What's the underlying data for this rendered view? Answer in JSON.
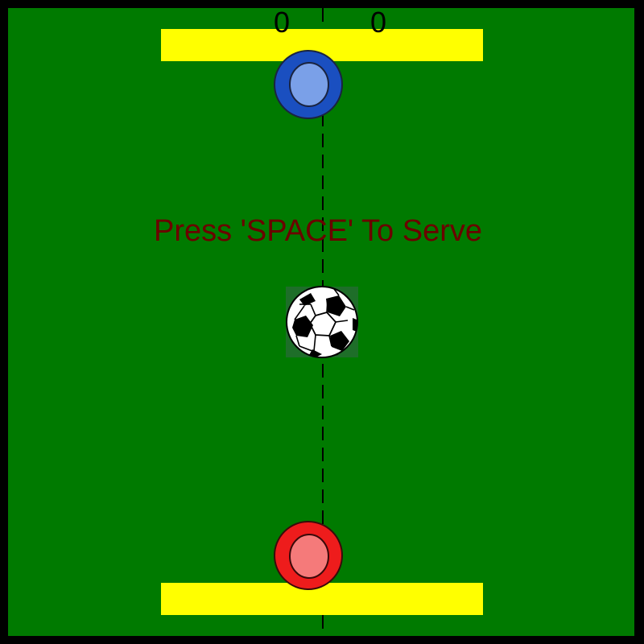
{
  "game": {
    "score_left": "0",
    "score_right": "0",
    "prompt": "Press 'SPACE' To Serve"
  },
  "colors": {
    "border": "#000000",
    "field": "#007a00",
    "goal_bar": "#ffff00",
    "top_paddle_outer": "#1a4fc0",
    "top_paddle_inner": "#7aa0e8",
    "bottom_paddle_outer": "#ee1c1c",
    "bottom_paddle_inner": "#f57a7a",
    "prompt_text": "#6b0000"
  },
  "icons": {
    "ball": "soccer-ball-icon"
  }
}
